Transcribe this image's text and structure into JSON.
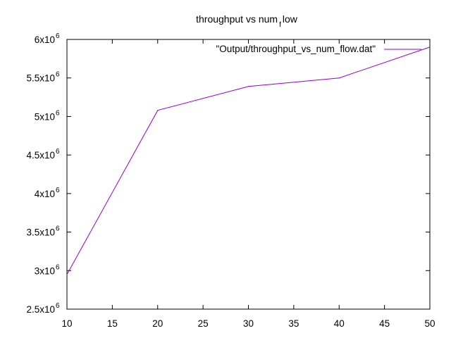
{
  "chart_data": {
    "type": "line",
    "title_main": "throughput vs num",
    "title_sub": "f",
    "title_tail": "low",
    "x": [
      10,
      20,
      30,
      40,
      50
    ],
    "series": [
      {
        "name": "\"Output/throughput_vs_num_flow.dat\"",
        "values": [
          2950000,
          5080000,
          5390000,
          5500000,
          5900000
        ],
        "color": "#9400d3"
      }
    ],
    "xlim": [
      10,
      50
    ],
    "ylim": [
      2500000,
      6000000
    ],
    "xticks": [
      10,
      15,
      20,
      25,
      30,
      35,
      40,
      45,
      50
    ],
    "xtick_labels": [
      "10",
      "15",
      "20",
      "25",
      "30",
      "35",
      "40",
      "45",
      "50"
    ],
    "yticks": [
      2500000,
      3000000,
      3500000,
      4000000,
      4500000,
      5000000,
      5500000,
      6000000
    ],
    "ytick_mantissa": [
      "2.5x10",
      "3x10",
      "3.5x10",
      "4x10",
      "4.5x10",
      "5x10",
      "5.5x10",
      "6x10"
    ],
    "ytick_exponent": "6",
    "grid": false,
    "legend_position": "top-right"
  }
}
